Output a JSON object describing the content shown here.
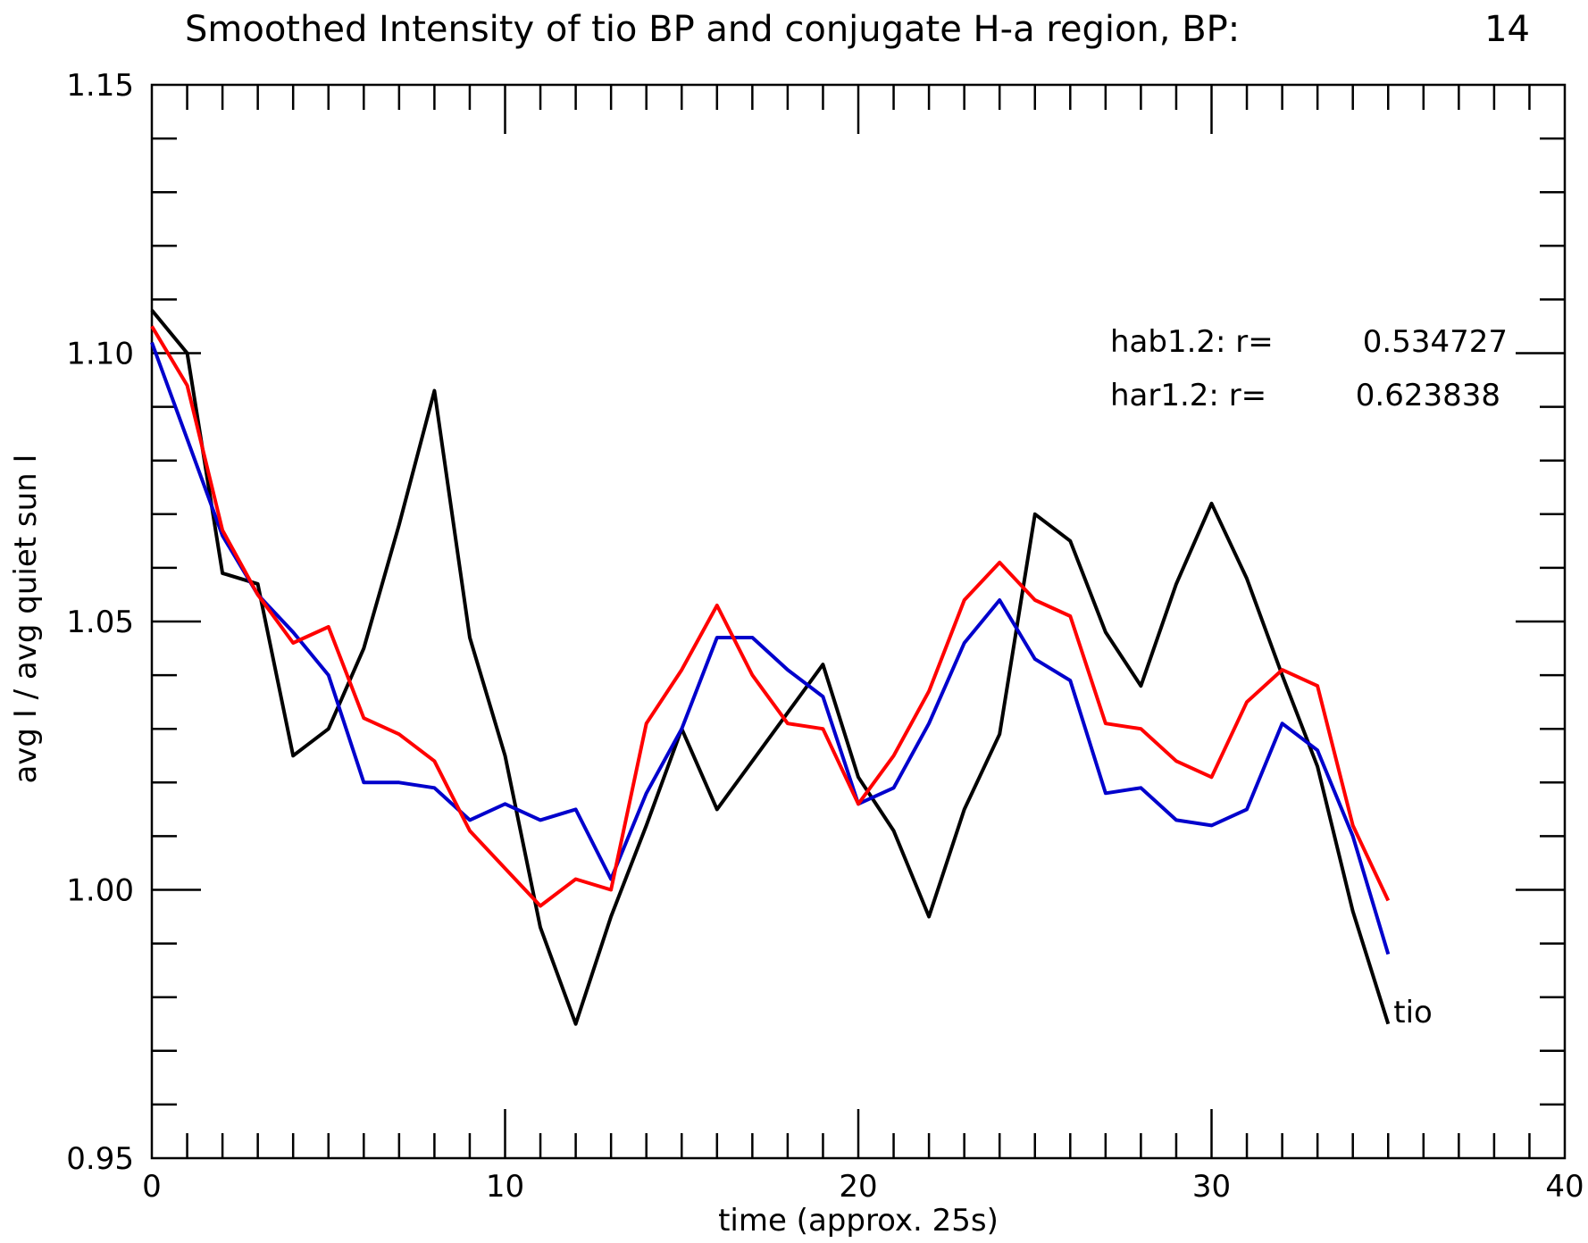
{
  "chart_data": {
    "type": "line",
    "title": "Smoothed Intensity of tio BP and conjugate H-a region, BP:",
    "title_value": "14",
    "xlabel": "time (approx. 25s)",
    "ylabel": "avg I / avg quiet sun I",
    "xlim": [
      0,
      40
    ],
    "ylim": [
      0.95,
      1.15
    ],
    "x_ticks": [
      0,
      10,
      20,
      30,
      40
    ],
    "x_tick_labels": [
      "0",
      "10",
      "20",
      "30",
      "40"
    ],
    "y_ticks": [
      0.95,
      1.0,
      1.05,
      1.1,
      1.15
    ],
    "y_tick_labels": [
      "0.95",
      "1.00",
      "1.05",
      "1.10",
      "1.15"
    ],
    "grid": false,
    "annotations": [
      {
        "label": "hab1.2: r=",
        "value": "0.534727"
      },
      {
        "label": "har1.2: r=",
        "value": "0.623838"
      }
    ],
    "x": [
      0,
      1,
      2,
      3,
      4,
      5,
      6,
      7,
      8,
      9,
      10,
      11,
      12,
      13,
      14,
      15,
      16,
      17,
      18,
      19,
      20,
      21,
      22,
      23,
      24,
      25,
      26,
      27,
      28,
      29,
      30,
      31,
      32,
      33,
      34,
      35
    ],
    "series": [
      {
        "name": "tio",
        "color": "#000000",
        "values": [
          1.108,
          1.1,
          1.059,
          1.057,
          1.025,
          1.03,
          1.045,
          1.068,
          1.093,
          1.047,
          1.025,
          0.993,
          0.975,
          0.995,
          1.012,
          1.03,
          1.015,
          1.024,
          1.033,
          1.042,
          1.021,
          1.011,
          0.995,
          1.015,
          1.029,
          1.07,
          1.065,
          1.048,
          1.038,
          1.057,
          1.072,
          1.058,
          1.04,
          1.023,
          0.996,
          0.975
        ]
      },
      {
        "color": "#0000cc",
        "values": [
          1.102,
          1.084,
          1.066,
          1.055,
          1.048,
          1.04,
          1.02,
          1.02,
          1.019,
          1.013,
          1.016,
          1.013,
          1.015,
          1.002,
          1.018,
          1.03,
          1.047,
          1.047,
          1.041,
          1.036,
          1.016,
          1.019,
          1.031,
          1.046,
          1.054,
          1.043,
          1.039,
          1.018,
          1.019,
          1.013,
          1.012,
          1.015,
          1.031,
          1.026,
          1.01,
          0.988
        ]
      },
      {
        "color": "#ff0000",
        "values": [
          1.105,
          1.094,
          1.067,
          1.055,
          1.046,
          1.049,
          1.032,
          1.029,
          1.024,
          1.011,
          1.004,
          0.997,
          1.002,
          1.0,
          1.031,
          1.041,
          1.053,
          1.04,
          1.031,
          1.03,
          1.016,
          1.025,
          1.037,
          1.054,
          1.061,
          1.054,
          1.051,
          1.031,
          1.03,
          1.024,
          1.021,
          1.035,
          1.041,
          1.038,
          1.012,
          0.998
        ]
      }
    ],
    "series_end_label": "tio"
  }
}
